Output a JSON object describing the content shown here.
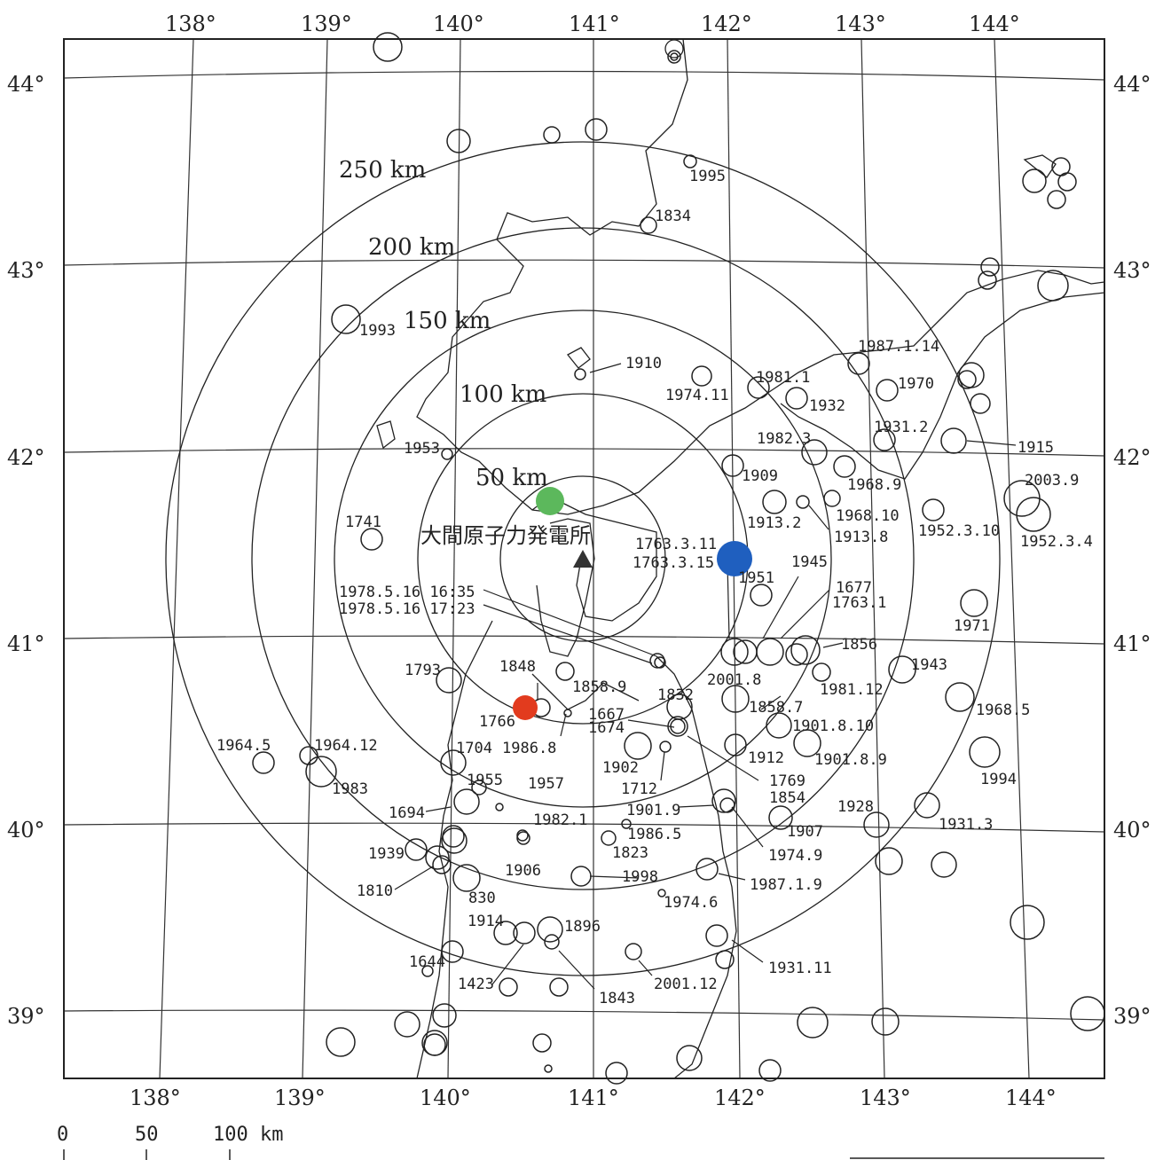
{
  "site": {
    "name": "大間原子力発電所"
  },
  "scale_bar": {
    "labels": [
      "0",
      "50",
      "100 km"
    ]
  },
  "ring_labels": [
    "50 km",
    "100 km",
    "150 km",
    "200 km",
    "250 km"
  ],
  "lon_labels": [
    "138°",
    "139°",
    "140°",
    "141°",
    "142°",
    "143°",
    "144°"
  ],
  "lat_labels": [
    "44°",
    "43°",
    "42°",
    "41°",
    "40°",
    "39°"
  ],
  "colors": {
    "green_marker": "#5cb85c",
    "blue_marker": "#1f5fbf",
    "red_marker": "#e23b1e",
    "site_marker": "#333333",
    "line": "#222222"
  },
  "markers": {
    "green": "green-dot",
    "blue": "blue-dot",
    "red": "red-dot",
    "site": "triangle"
  },
  "earthquake_labels": [
    "1995",
    "1834",
    "1993",
    "1910",
    "1974.11",
    "1981.1",
    "1932",
    "1987.1.14",
    "1970",
    "1931.2",
    "1982.3",
    "1915",
    "1953",
    "1909",
    "1968.9",
    "2003.9",
    "1741",
    "1913.2",
    "1968.10",
    "1913.8",
    "1952.3.10",
    "1952.3.4",
    "1763.3.11",
    "1763.3.15",
    "1945",
    "1951",
    "1677",
    "1763.1",
    "1978.5.16 16:35",
    "1978.5.16 17:23",
    "1971",
    "1856",
    "1793",
    "1848",
    "1858.9",
    "1832",
    "2001.8",
    "1943",
    "1981.12",
    "1766",
    "1667",
    "1674",
    "1858.7",
    "1968.5",
    "1901.8.10",
    "1964.5",
    "1964.12",
    "1704",
    "1986.8",
    "1912",
    "1901.8.9",
    "1983",
    "1902",
    "1994",
    "1955",
    "1957",
    "1712",
    "1769",
    "1854",
    "1694",
    "1901.9",
    "1928",
    "1982.1",
    "1907",
    "1931.3",
    "1986.5",
    "1939",
    "1906",
    "1823",
    "1974.9",
    "1998",
    "1810",
    "830",
    "1987.1.9",
    "1974.6",
    "1914",
    "1896",
    "1644",
    "1931.11",
    "1423",
    "2001.12",
    "1843"
  ]
}
